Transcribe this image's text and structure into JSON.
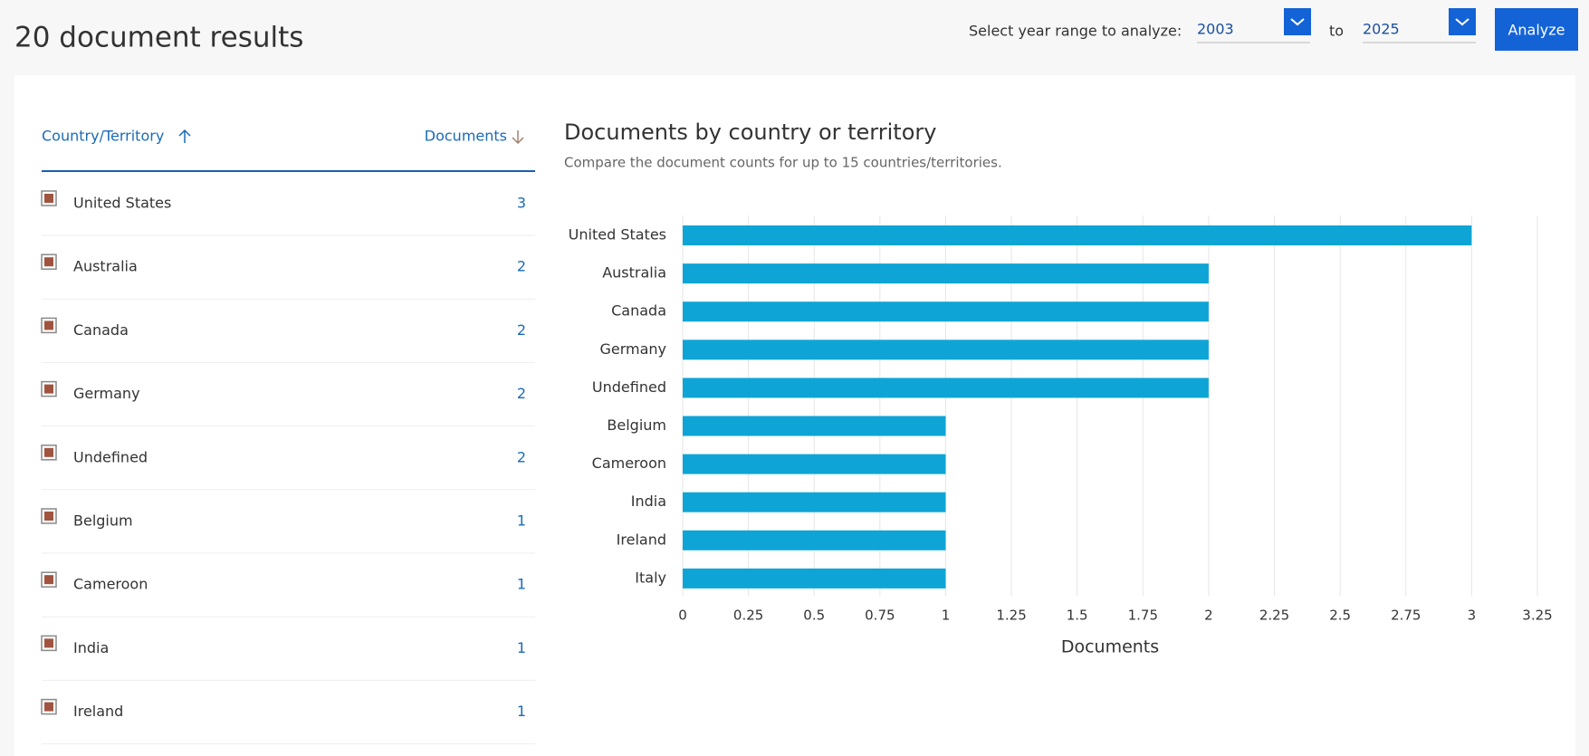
{
  "header": {
    "title": "20 document results",
    "range_label": "Select year range to analyze:",
    "from": "2003",
    "to_label": "to",
    "to": "2025",
    "button": "Analyze"
  },
  "table": {
    "columns": [
      "Country/Territory",
      "Documents"
    ],
    "rows": [
      [
        "United States",
        3
      ],
      [
        "Australia",
        2
      ],
      [
        "Canada",
        2
      ],
      [
        "Germany",
        2
      ],
      [
        "Undefined",
        2
      ],
      [
        "Belgium",
        1
      ],
      [
        "Cameroon",
        1
      ],
      [
        "India",
        1
      ],
      [
        "Ireland",
        1
      ]
    ]
  },
  "chart_data": {
    "type": "bar",
    "orientation": "horizontal",
    "title": "Documents by country or territory",
    "subtitle": "Compare the document counts for up to 15 countries/territories.",
    "categories": [
      "United States",
      "Australia",
      "Canada",
      "Germany",
      "Undefined",
      "Belgium",
      "Cameroon",
      "India",
      "Ireland",
      "Italy"
    ],
    "values": [
      3,
      2,
      2,
      2,
      2,
      1,
      1,
      1,
      1,
      1
    ],
    "color": "#0ea5d6",
    "xlabel": "Documents",
    "xlim": [
      0,
      3.25
    ],
    "xticks": [
      0,
      0.25,
      0.5,
      0.75,
      1,
      1.25,
      1.5,
      1.75,
      2,
      2.25,
      2.5,
      2.75,
      3,
      3.25
    ],
    "grid": true
  }
}
